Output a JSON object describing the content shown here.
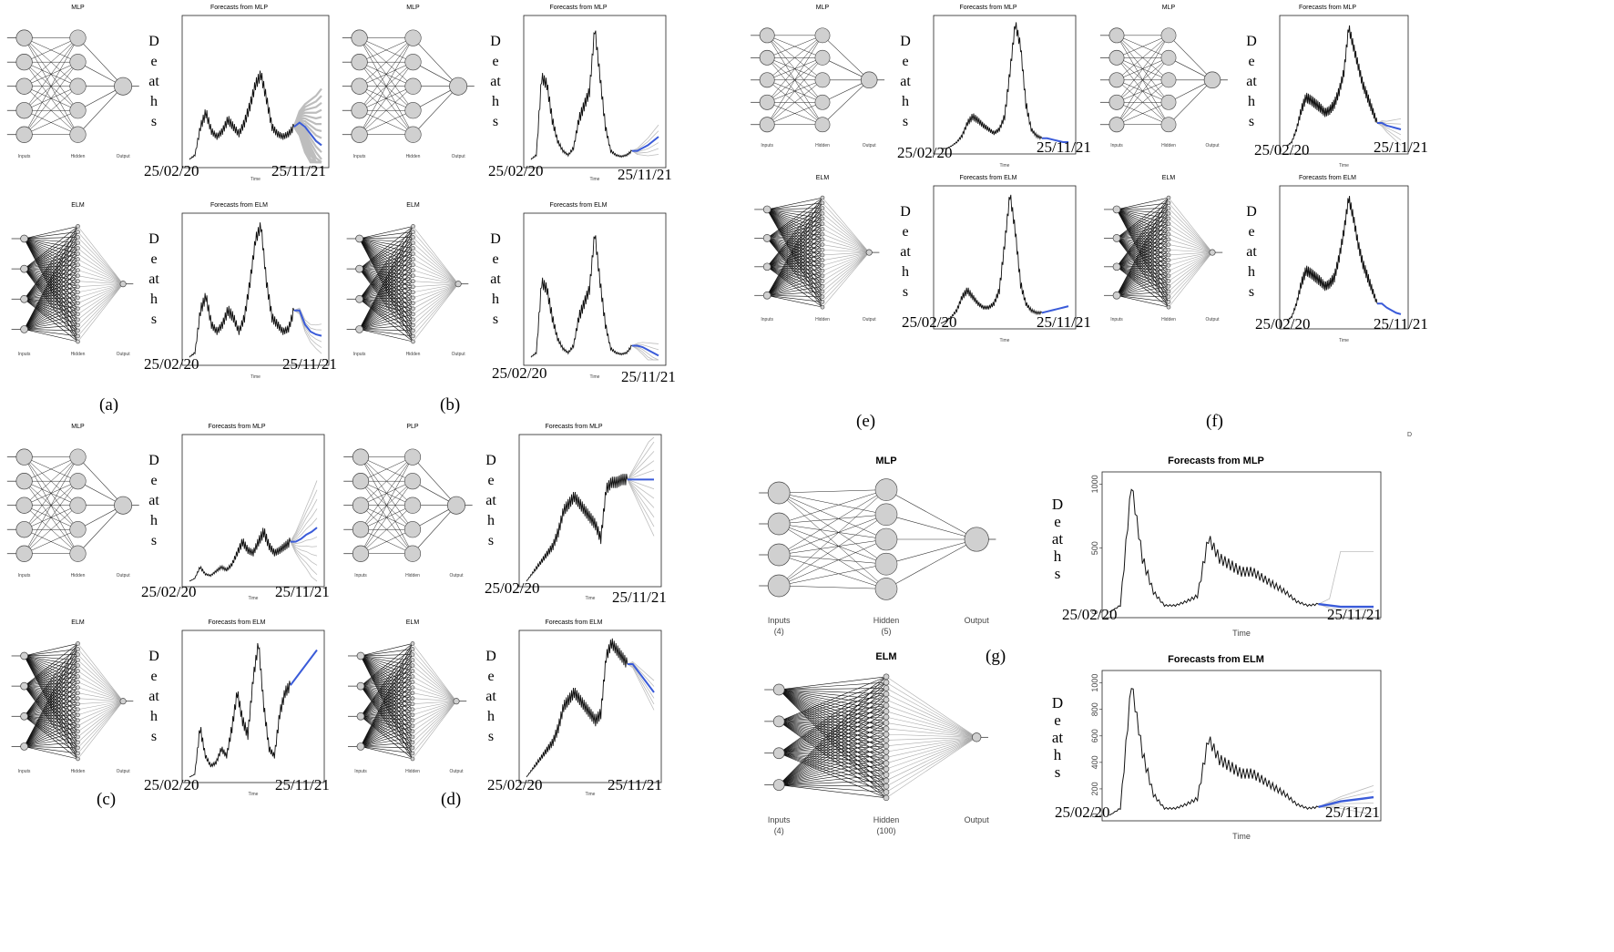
{
  "figure": {
    "date_start": "25/02/20",
    "date_end": "25/11/21",
    "ylabel": "Deaths",
    "xlabel": "Time",
    "stray_mark": "D",
    "forecast_color": "#3a5bd9",
    "history_color": "#111111",
    "band_color": "#bdbdbd"
  },
  "panels": [
    {
      "letter": "(a)"
    },
    {
      "letter": "(b)"
    },
    {
      "letter": "(c)"
    },
    {
      "letter": "(d)"
    },
    {
      "letter": "(e)"
    },
    {
      "letter": "(f)"
    },
    {
      "letter": "(g)"
    }
  ],
  "networks": {
    "mlp_title": "MLP",
    "elm_title": "ELM",
    "pd_mlp_title": "PLP",
    "inputs_label": "Inputs",
    "hidden_label": "Hidden",
    "output_label": "Output",
    "g_mlp_inputs": "(4)",
    "g_mlp_hidden": "(5)",
    "g_elm_inputs": "(4)",
    "g_elm_hidden": "(100)"
  },
  "chart_data": [
    {
      "id": "a-mlp",
      "type": "line",
      "title": "Forecasts from MLP",
      "xlabel": "Time",
      "ylabel": "Deaths",
      "series": [
        {
          "name": "history",
          "values": [
            0.02,
            0.05,
            0.25,
            0.35,
            0.22,
            0.18,
            0.22,
            0.3,
            0.25,
            0.2,
            0.28,
            0.4,
            0.55,
            0.62,
            0.45,
            0.25,
            0.2,
            0.18,
            0.2,
            0.25
          ]
        },
        {
          "name": "forecast",
          "values": [
            0.28,
            0.25,
            0.2,
            0.15,
            0.12
          ]
        }
      ],
      "band": "wide"
    },
    {
      "id": "a-elm",
      "type": "line",
      "title": "Forecasts from ELM",
      "xlabel": "Time",
      "ylabel": "Deaths",
      "series": [
        {
          "name": "history",
          "values": [
            0.02,
            0.05,
            0.35,
            0.45,
            0.25,
            0.2,
            0.25,
            0.35,
            0.3,
            0.2,
            0.3,
            0.55,
            0.85,
            0.95,
            0.55,
            0.3,
            0.25,
            0.2,
            0.22,
            0.35
          ]
        },
        {
          "name": "forecast",
          "values": [
            0.35,
            0.25,
            0.2,
            0.18,
            0.17
          ]
        }
      ],
      "band": "narrow"
    },
    {
      "id": "b-mlp",
      "type": "line",
      "title": "Forecasts from MLP",
      "xlabel": "Time",
      "ylabel": "Deaths",
      "series": [
        {
          "name": "history",
          "values": [
            0.02,
            0.05,
            0.6,
            0.55,
            0.3,
            0.15,
            0.08,
            0.05,
            0.1,
            0.3,
            0.4,
            0.5,
            0.95,
            0.6,
            0.25,
            0.08,
            0.05,
            0.04,
            0.05,
            0.08
          ]
        },
        {
          "name": "forecast",
          "values": [
            0.08,
            0.1,
            0.12,
            0.15,
            0.18
          ]
        }
      ],
      "band": "small"
    },
    {
      "id": "b-elm",
      "type": "line",
      "title": "Forecasts from ELM",
      "xlabel": "Time",
      "ylabel": "Deaths",
      "series": [
        {
          "name": "history",
          "values": [
            0.02,
            0.05,
            0.55,
            0.5,
            0.3,
            0.15,
            0.08,
            0.05,
            0.1,
            0.3,
            0.4,
            0.5,
            0.9,
            0.55,
            0.25,
            0.08,
            0.05,
            0.04,
            0.05,
            0.1
          ]
        },
        {
          "name": "forecast",
          "values": [
            0.1,
            0.09,
            0.07,
            0.05,
            0.03
          ]
        }
      ],
      "band": "narrow"
    },
    {
      "id": "c-mlp",
      "type": "line",
      "title": "Forecasts from MLP",
      "xlabel": "Time",
      "ylabel": "Deaths",
      "series": [
        {
          "name": "history",
          "values": [
            0.0,
            0.02,
            0.1,
            0.05,
            0.04,
            0.07,
            0.1,
            0.08,
            0.12,
            0.2,
            0.28,
            0.22,
            0.2,
            0.28,
            0.35,
            0.25,
            0.2,
            0.22,
            0.25,
            0.28
          ]
        },
        {
          "name": "forecast",
          "values": [
            0.28,
            0.3,
            0.33,
            0.35,
            0.38
          ]
        }
      ],
      "band": "fan"
    },
    {
      "id": "c-elm",
      "type": "line",
      "title": "Forecasts from ELM",
      "xlabel": "Time",
      "ylabel": "Deaths",
      "series": [
        {
          "name": "history",
          "values": [
            0.0,
            0.02,
            0.35,
            0.15,
            0.08,
            0.1,
            0.2,
            0.15,
            0.35,
            0.6,
            0.4,
            0.3,
            0.7,
            0.95,
            0.5,
            0.2,
            0.15,
            0.45,
            0.6,
            0.65
          ]
        },
        {
          "name": "forecast",
          "values": [
            0.7,
            0.75,
            0.8,
            0.85,
            0.9
          ]
        }
      ],
      "band": "none"
    },
    {
      "id": "d-mlp",
      "type": "line",
      "title": "Forecasts from MLP",
      "xlabel": "Time",
      "ylabel": "Deaths",
      "series": [
        {
          "name": "history",
          "values": [
            0.0,
            0.05,
            0.1,
            0.15,
            0.2,
            0.25,
            0.35,
            0.5,
            0.55,
            0.6,
            0.55,
            0.5,
            0.45,
            0.4,
            0.3,
            0.65,
            0.7,
            0.7,
            0.72,
            0.72
          ]
        },
        {
          "name": "forecast",
          "values": [
            0.72,
            0.72,
            0.72,
            0.72,
            0.72
          ]
        }
      ],
      "band": "fan"
    },
    {
      "id": "d-elm",
      "type": "line",
      "title": "Forecasts from ELM",
      "xlabel": "Time",
      "ylabel": "Deaths",
      "series": [
        {
          "name": "history",
          "values": [
            0.0,
            0.05,
            0.1,
            0.15,
            0.2,
            0.25,
            0.35,
            0.5,
            0.55,
            0.6,
            0.55,
            0.5,
            0.45,
            0.4,
            0.45,
            0.85,
            0.95,
            0.9,
            0.85,
            0.8
          ]
        },
        {
          "name": "forecast",
          "values": [
            0.8,
            0.75,
            0.7,
            0.65,
            0.6
          ]
        }
      ],
      "band": "narrow"
    },
    {
      "id": "e-mlp",
      "type": "line",
      "title": "Forecasts from MLP",
      "xlabel": "Time",
      "ylabel": "Deaths",
      "series": [
        {
          "name": "history",
          "values": [
            0.0,
            0.0,
            0.02,
            0.05,
            0.1,
            0.2,
            0.25,
            0.22,
            0.18,
            0.15,
            0.12,
            0.15,
            0.25,
            0.6,
            0.98,
            0.8,
            0.35,
            0.15,
            0.1,
            0.08
          ]
        },
        {
          "name": "forecast",
          "values": [
            0.08,
            0.07,
            0.06,
            0.05,
            0.05
          ]
        }
      ],
      "band": "none"
    },
    {
      "id": "e-elm",
      "type": "line",
      "title": "Forecasts from ELM",
      "xlabel": "Time",
      "ylabel": "Deaths",
      "series": [
        {
          "name": "history",
          "values": [
            0.0,
            0.02,
            0.05,
            0.1,
            0.2,
            0.25,
            0.2,
            0.15,
            0.12,
            0.12,
            0.15,
            0.25,
            0.6,
            0.98,
            0.7,
            0.3,
            0.15,
            0.1,
            0.08,
            0.08
          ]
        },
        {
          "name": "forecast",
          "values": [
            0.09,
            0.1,
            0.11,
            0.12,
            0.13
          ]
        }
      ],
      "band": "none"
    },
    {
      "id": "f-mlp",
      "type": "line",
      "title": "Forecasts from MLP",
      "xlabel": "Time",
      "ylabel": "Deaths",
      "series": [
        {
          "name": "history",
          "values": [
            0.02,
            0.05,
            0.15,
            0.3,
            0.4,
            0.38,
            0.35,
            0.32,
            0.28,
            0.3,
            0.35,
            0.45,
            0.6,
            0.95,
            0.8,
            0.65,
            0.5,
            0.4,
            0.3,
            0.2
          ]
        },
        {
          "name": "forecast",
          "values": [
            0.2,
            0.18,
            0.17,
            0.16,
            0.15
          ]
        }
      ],
      "band": "small"
    },
    {
      "id": "f-elm",
      "type": "line",
      "title": "Forecasts from ELM",
      "xlabel": "Time",
      "ylabel": "Deaths",
      "series": [
        {
          "name": "history",
          "values": [
            0.02,
            0.05,
            0.15,
            0.3,
            0.4,
            0.38,
            0.35,
            0.32,
            0.28,
            0.3,
            0.35,
            0.5,
            0.7,
            0.95,
            0.8,
            0.6,
            0.45,
            0.35,
            0.25,
            0.15
          ]
        },
        {
          "name": "forecast",
          "values": [
            0.15,
            0.12,
            0.1,
            0.08,
            0.07
          ]
        }
      ],
      "band": "none"
    },
    {
      "id": "g-mlp",
      "type": "line",
      "title": "Forecasts from MLP",
      "xlabel": "Time",
      "ylabel": "Deaths",
      "yticks": [
        "0",
        "500",
        "1000"
      ],
      "series": [
        {
          "name": "history",
          "values": [
            0.0,
            0.05,
            0.95,
            0.4,
            0.15,
            0.05,
            0.05,
            0.08,
            0.12,
            0.55,
            0.4,
            0.35,
            0.3,
            0.3,
            0.25,
            0.2,
            0.15,
            0.08,
            0.05,
            0.06
          ]
        },
        {
          "name": "forecast",
          "values": [
            0.05,
            0.04,
            0.04,
            0.04,
            0.04
          ]
        }
      ],
      "band": "step"
    },
    {
      "id": "g-elm",
      "type": "line",
      "title": "Forecasts from ELM",
      "xlabel": "Time",
      "ylabel": "Deaths",
      "yticks": [
        "0",
        "200",
        "400",
        "600",
        "800",
        "1000"
      ],
      "series": [
        {
          "name": "history",
          "values": [
            0.0,
            0.05,
            0.95,
            0.45,
            0.15,
            0.05,
            0.05,
            0.08,
            0.12,
            0.55,
            0.4,
            0.35,
            0.3,
            0.3,
            0.25,
            0.2,
            0.15,
            0.08,
            0.05,
            0.06
          ]
        },
        {
          "name": "forecast",
          "values": [
            0.08,
            0.1,
            0.11,
            0.12,
            0.13
          ]
        }
      ],
      "band": "narrow"
    }
  ]
}
